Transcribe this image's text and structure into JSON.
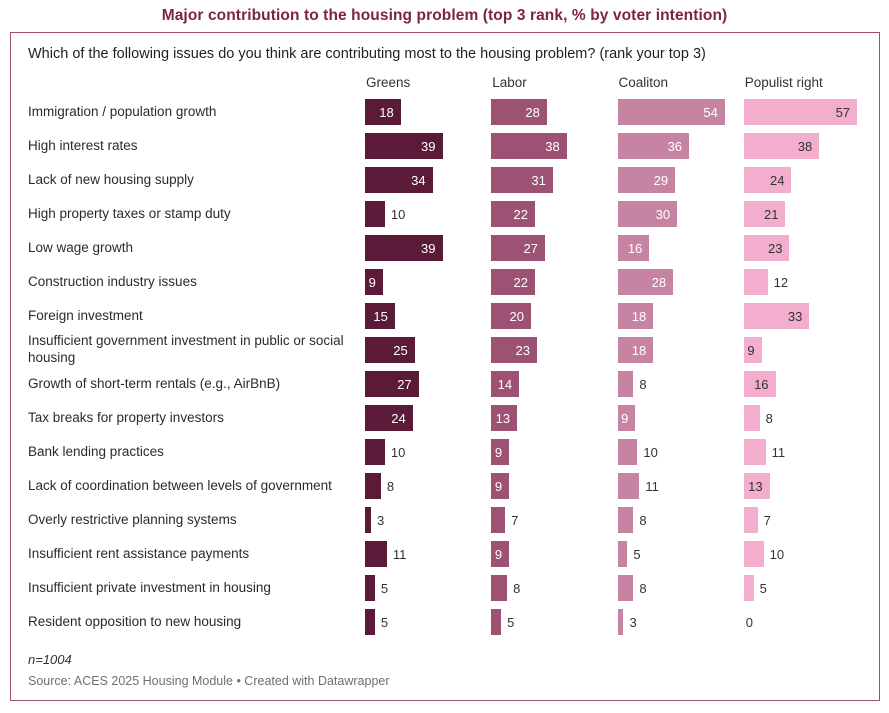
{
  "title": "Major contribution to the housing problem (top 3 rank, % by voter intention)",
  "question": "Which of the following issues do you think are contributing most to the housing problem? (rank your top 3)",
  "footnote": "n=1004",
  "source": "Source: ACES 2025 Housing Module • Created with Datawrapper",
  "colors": {
    "title": "#7D2248",
    "frame_border": "#9E515C",
    "greens_bar": "#5B1B38",
    "labor_bar": "#9E5273",
    "coaliton_bar": "#C784A2",
    "populist_right_bar": "#F2AECC",
    "inside_label_dark_bars": "#FFFFFF",
    "inside_label_light_bars": "#333333",
    "outside_label": "#333333"
  },
  "chart_data": {
    "type": "bar",
    "orientation": "horizontal",
    "layout": "small multiples, one column per voter-intention group",
    "value_unit": "%",
    "value_axis_max": 60,
    "grid": false,
    "legend_position": "column headers above each panel",
    "categories": [
      "Immigration / population growth",
      "High interest rates",
      "Lack of new housing supply",
      "High property taxes or stamp duty",
      "Low wage growth",
      "Construction industry issues",
      "Foreign investment",
      "Insufficient government investment in public or social housing",
      "Growth of short-term rentals (e.g., AirBnB)",
      "Tax breaks for property investors",
      "Bank lending practices",
      "Lack of coordination between levels of government",
      "Overly restrictive planning systems",
      "Insufficient rent assistance payments",
      "Insufficient private investment in housing",
      "Resident opposition to new housing"
    ],
    "series": [
      {
        "name": "Greens",
        "color": "#5B1B38",
        "inside_label_color": "#FFFFFF",
        "values": [
          18,
          39,
          34,
          10,
          39,
          9,
          15,
          25,
          27,
          24,
          10,
          8,
          3,
          11,
          5,
          5
        ]
      },
      {
        "name": "Labor",
        "color": "#9E5273",
        "inside_label_color": "#FFFFFF",
        "values": [
          28,
          38,
          31,
          22,
          27,
          22,
          20,
          23,
          14,
          13,
          9,
          9,
          7,
          9,
          8,
          5
        ]
      },
      {
        "name": "Coaliton",
        "color": "#C784A2",
        "inside_label_color": "#FFFFFF",
        "values": [
          54,
          36,
          29,
          30,
          16,
          28,
          18,
          18,
          8,
          9,
          10,
          11,
          8,
          5,
          8,
          3
        ]
      },
      {
        "name": "Populist right",
        "color": "#F2AECC",
        "inside_label_color": "#333333",
        "values": [
          57,
          38,
          24,
          21,
          23,
          12,
          33,
          9,
          16,
          8,
          11,
          13,
          7,
          10,
          5,
          0
        ]
      }
    ]
  }
}
